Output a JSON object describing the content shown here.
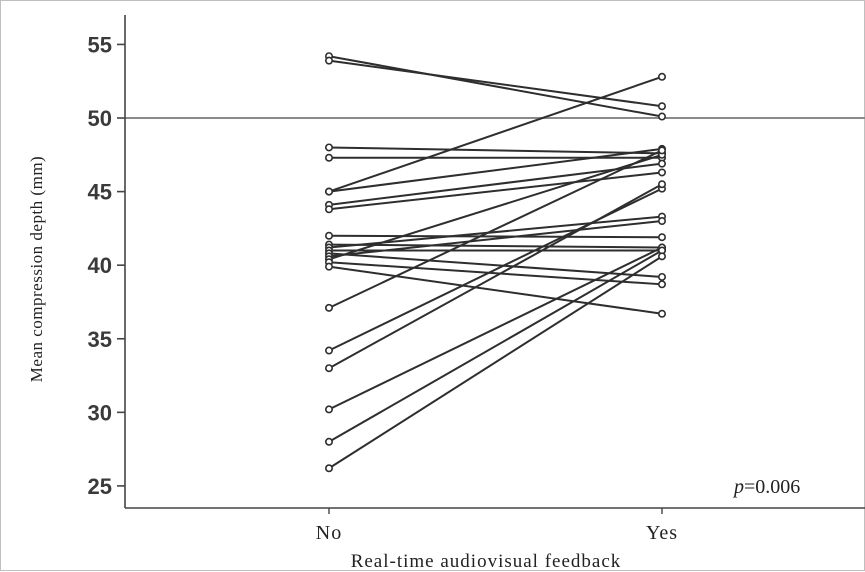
{
  "chart_data": {
    "type": "line",
    "xlabel": "Real-time audiovisual feedback",
    "ylabel": "Mean compression depth (mm)",
    "categories": [
      "No",
      "Yes"
    ],
    "ylim": [
      23.5,
      57
    ],
    "yticks": [
      25,
      30,
      35,
      40,
      45,
      50,
      55
    ],
    "reference_line": 50,
    "annotation": {
      "italic": "p",
      "rest": "=0.006"
    },
    "grid": false,
    "pairs": [
      [
        54.2,
        50.1
      ],
      [
        53.9,
        50.8
      ],
      [
        48.0,
        47.6
      ],
      [
        47.3,
        47.3
      ],
      [
        45.0,
        52.8
      ],
      [
        45.0,
        47.9
      ],
      [
        44.1,
        46.9
      ],
      [
        43.8,
        46.3
      ],
      [
        42.0,
        41.9
      ],
      [
        41.4,
        41.2
      ],
      [
        41.2,
        43.3
      ],
      [
        41.0,
        41.0
      ],
      [
        40.8,
        39.2
      ],
      [
        40.6,
        43.0
      ],
      [
        40.4,
        47.5
      ],
      [
        40.2,
        38.7
      ],
      [
        39.9,
        36.7
      ],
      [
        37.1,
        47.8
      ],
      [
        34.2,
        45.2
      ],
      [
        33.0,
        45.5
      ],
      [
        30.2,
        41.2
      ],
      [
        28.0,
        41.0
      ],
      [
        26.2,
        40.6
      ]
    ]
  }
}
